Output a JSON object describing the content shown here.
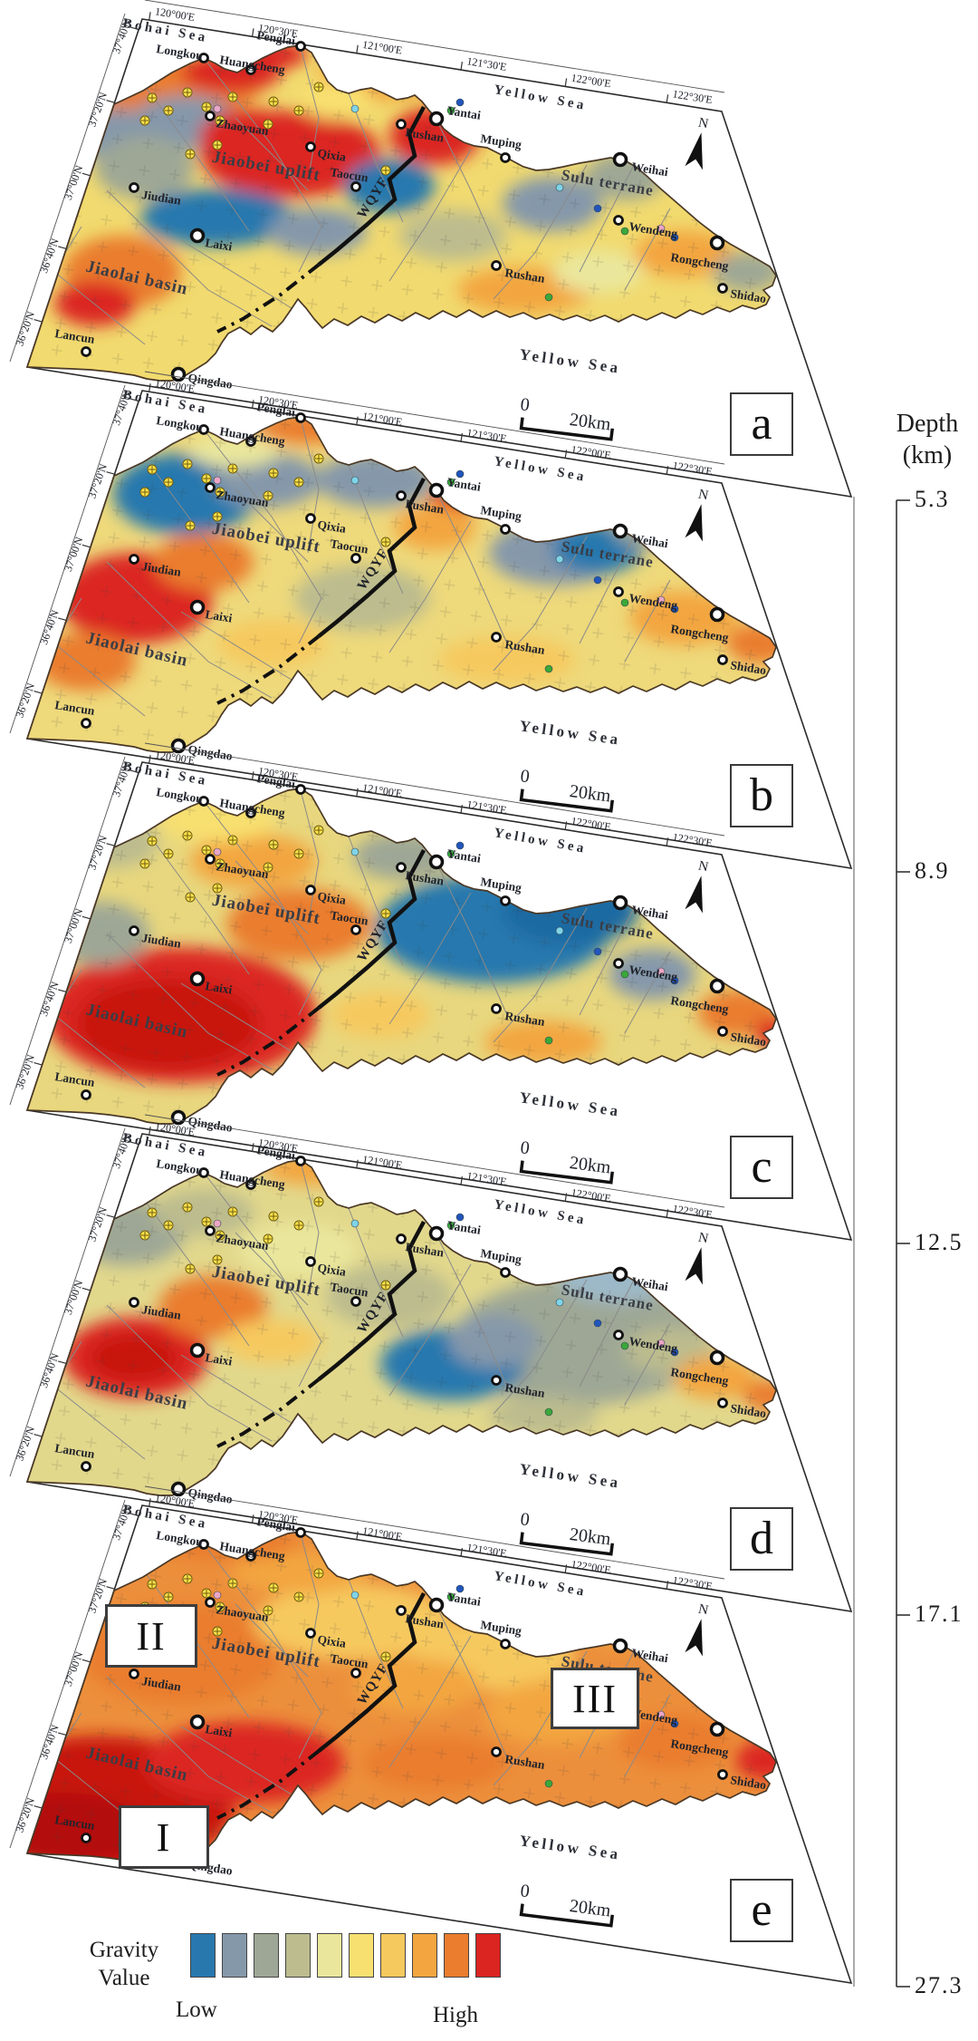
{
  "figure": {
    "description": "Stacked depth-slice gravity maps of the Jiaodong Peninsula",
    "panel_count": 5
  },
  "panels": [
    {
      "letter": "a",
      "depth_km": "5.3"
    },
    {
      "letter": "b",
      "depth_km": "8.9"
    },
    {
      "letter": "c",
      "depth_km": "12.5"
    },
    {
      "letter": "d",
      "depth_km": "17.1"
    },
    {
      "letter": "e",
      "depth_km": "27.3"
    }
  ],
  "zones": {
    "zone1": "I",
    "zone2": "II",
    "zone3": "III"
  },
  "depth_axis": {
    "title_line1": "Depth",
    "title_line2": "(km)",
    "ticks": [
      "5.3",
      "8.9",
      "12.5",
      "17.1",
      "27.3"
    ]
  },
  "map_labels": {
    "seas": [
      "Bohai Sea",
      "Yellow Sea"
    ],
    "regions": [
      "Jiaobei uplift",
      "Jiaolai basin",
      "Sulu terrane"
    ],
    "fault": "WQYF",
    "cities": [
      "Longkou",
      "Huangcheng",
      "Penglai",
      "Zhaoyuan",
      "Qixia",
      "Fushan",
      "Yantai",
      "Muping",
      "Weihai",
      "Wendeng",
      "Rongcheng",
      "Shidao",
      "Rushan",
      "Taocun",
      "Laixi",
      "Jiudian",
      "Lancun",
      "Qingdao"
    ],
    "longitude_ticks": [
      "120°00'E",
      "120°30'E",
      "121°00'E",
      "121°30'E",
      "122°00'E",
      "122°30'E"
    ],
    "latitude_ticks": [
      "37°40'N",
      "37°20'N",
      "37°00'N",
      "36°40'N",
      "36°20'N"
    ],
    "compass": "N",
    "scale_zero": "0",
    "scale_label": "20km"
  },
  "legend": {
    "title_line1": "Gravity",
    "title_line2": "Value",
    "low": "Low",
    "high": "High",
    "colors": [
      "#2878ae",
      "#8598aa",
      "#9ea795",
      "#bcbc8e",
      "#eae79c",
      "#f8e070",
      "#f6c95e",
      "#f3a640",
      "#ea7d2e",
      "#db2521"
    ]
  }
}
